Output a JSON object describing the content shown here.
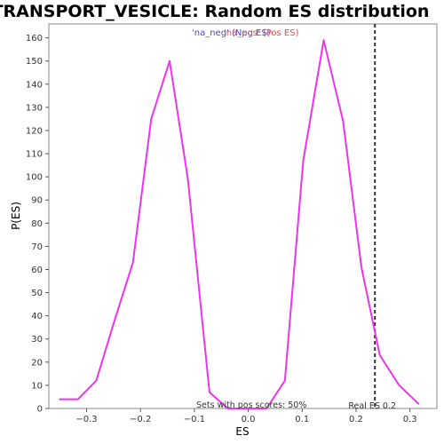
{
  "chart_data": {
    "type": "line",
    "title": "TRANSPORT_VESICLE: Random ES distribution",
    "xlabel": "ES",
    "ylabel": "P(ES)",
    "xlim": [
      -0.37,
      0.35
    ],
    "ylim": [
      0,
      166
    ],
    "x_ticks": [
      -0.3,
      -0.2,
      -0.1,
      0.0,
      0.1,
      0.2,
      0.3
    ],
    "x_tick_labels": [
      "−0.3",
      "−0.2",
      "−0.1",
      "0.0",
      "0.1",
      "0.2",
      "0.3"
    ],
    "y_ticks": [
      0,
      10,
      20,
      30,
      40,
      50,
      60,
      70,
      80,
      90,
      100,
      110,
      120,
      130,
      140,
      150,
      160
    ],
    "grid": false,
    "series": [
      {
        "color": "#ee33ee",
        "x": [
          -0.35,
          -0.316,
          -0.282,
          -0.248,
          -0.214,
          -0.18,
          -0.146,
          -0.112,
          -0.072,
          -0.038,
          0.0,
          0.034,
          0.068,
          0.102,
          0.14,
          0.176,
          0.21,
          0.244,
          0.28,
          0.316
        ],
        "y": [
          4,
          4,
          12,
          38,
          63,
          125,
          150,
          99,
          7,
          0,
          0,
          0,
          12,
          107,
          159,
          124,
          61,
          23,
          10,
          2
        ]
      }
    ],
    "real_es": {
      "value": 0.235,
      "label": "Real ES 0.2",
      "color": "#333333"
    },
    "legend": [
      {
        "label": "'na_neg' (Neg ES)",
        "color": "#4444dd"
      },
      {
        "label": "'na_pos' (Pos ES)",
        "color": "#ee4444"
      }
    ],
    "legend_position": "top-center",
    "annotations": [
      {
        "text": "Sets with pos scores: 50%"
      }
    ]
  }
}
